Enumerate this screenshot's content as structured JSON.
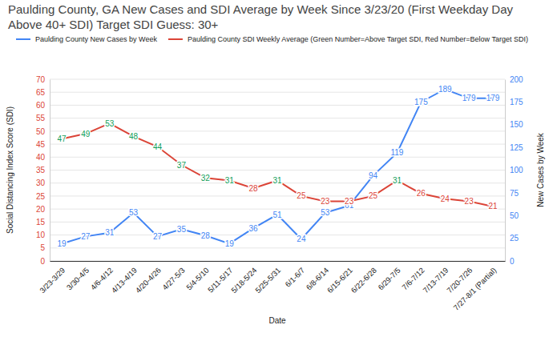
{
  "chart_data": {
    "type": "line",
    "title": "Paulding County, GA New Cases and SDI Average by Week Since 3/23/20 (First Weekday Day Above 40+ SDI) Target SDI Guess: 30+",
    "x_label": "Date",
    "y_label": "Social Distancing Index Score (SDI)",
    "y2_label": "New Cases by Week",
    "categories": [
      "3/23-3/29",
      "3/30-4/5",
      "4/6-4/12",
      "4/13-4/19",
      "4/20-4/26",
      "4/27-5/3",
      "5/4-5/10",
      "5/11-5/17",
      "5/18-5/24",
      "5/25-5/31",
      "6/1-6/7",
      "6/8-6/14",
      "6/15-6/21",
      "6/22-6/28",
      "6/29-7/5",
      "7/6-7/12",
      "7/13-7/19",
      "7/20-7/26",
      "7/27-8/1 (Partial)"
    ],
    "series": [
      {
        "name": "Paulding County New Cases by Week",
        "color": "#4285f4",
        "axis": "y2",
        "values": [
          19,
          27,
          31,
          53,
          27,
          35,
          28,
          19,
          36,
          51,
          24,
          53,
          61,
          94,
          119,
          175,
          189,
          179,
          179
        ]
      },
      {
        "name": "Paulding County SDI Weekly Average (Green Number=Above Target SDI, Red Number=Below Target SDI)",
        "color": "#db4437",
        "axis": "y",
        "colors": [
          "#0f9d58",
          "#0f9d58",
          "#0f9d58",
          "#0f9d58",
          "#0f9d58",
          "#0f9d58",
          "#0f9d58",
          "#0f9d58",
          "#db4437",
          "#0f9d58",
          "#db4437",
          "#db4437",
          "#db4437",
          "#db4437",
          "#0f9d58",
          "#db4437",
          "#db4437",
          "#db4437",
          "#db4437"
        ],
        "values": [
          47,
          49,
          53,
          48,
          44,
          37,
          32,
          31,
          28,
          31,
          25,
          23,
          23,
          25,
          31,
          26,
          24,
          23,
          21
        ]
      }
    ],
    "ylim": [
      0,
      70
    ],
    "yticks": [
      0,
      5,
      10,
      15,
      20,
      25,
      30,
      35,
      40,
      45,
      50,
      55,
      60,
      65,
      70
    ],
    "y2lim": [
      0,
      200
    ],
    "y2ticks": [
      0,
      25,
      50,
      75,
      100,
      125,
      150,
      175,
      200
    ],
    "grid": true,
    "data_labels": true,
    "legend": "top"
  }
}
